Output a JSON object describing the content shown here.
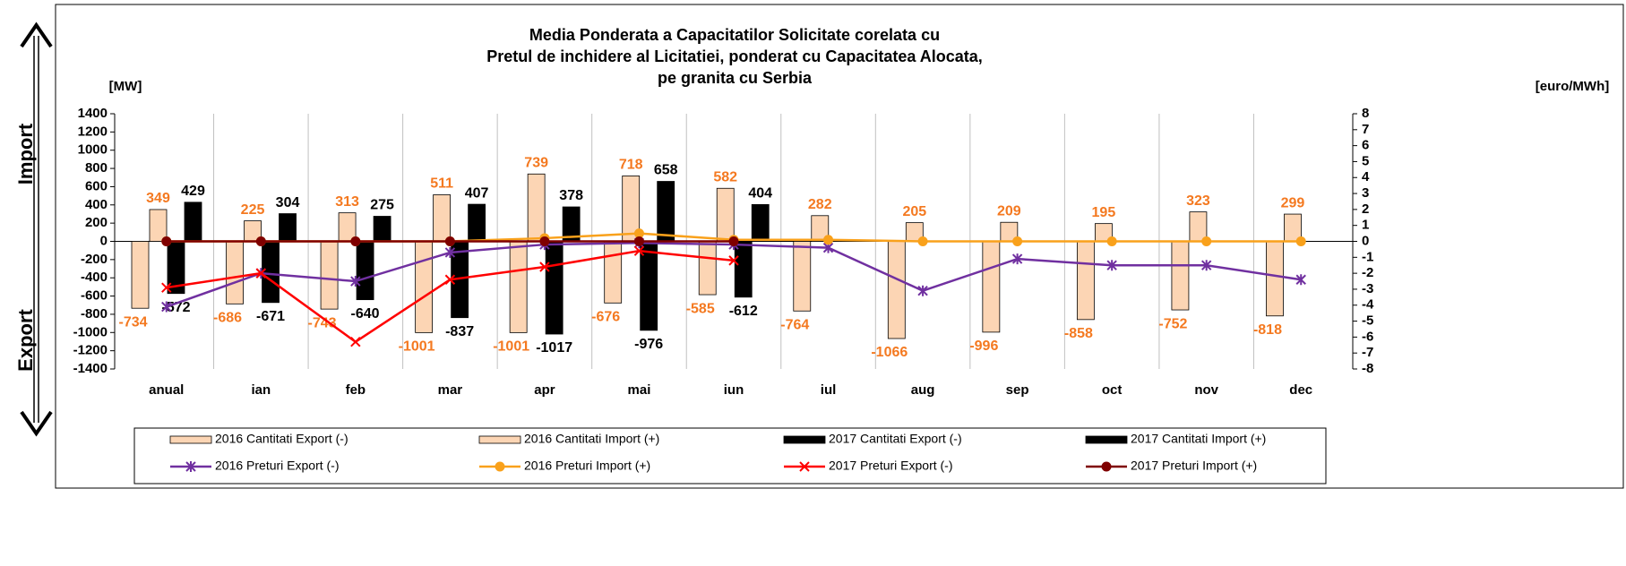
{
  "chart_data": {
    "type": "bar",
    "title": [
      "Media Ponderata a Capacitatilor Solicitate corelata cu",
      "Pretul de inchidere al Licitatiei, ponderat cu Capacitatea Alocata,",
      "pe granita cu Serbia"
    ],
    "y_label": "[MW]",
    "y2_label": "[euro/MWh]",
    "annotations": [
      "Import",
      "Export"
    ],
    "categories": [
      "anual",
      "ian",
      "feb",
      "mar",
      "apr",
      "mai",
      "iun",
      "iul",
      "aug",
      "sep",
      "oct",
      "nov",
      "dec"
    ],
    "series": [
      {
        "name": "2016 Cantitati Export (-)",
        "type": "bar",
        "color": "#fcd5b4",
        "label_color": "#f47920",
        "values": [
          -734,
          -686,
          -743,
          -1001,
          -1001,
          -676,
          -585,
          -764,
          -1066,
          -996,
          -858,
          -752,
          -818
        ]
      },
      {
        "name": "2016 Cantitati Import (+)",
        "type": "bar",
        "color": "#fcd5b4",
        "label_color": "#f47920",
        "values": [
          349,
          225,
          313,
          511,
          739,
          718,
          582,
          282,
          205,
          209,
          195,
          323,
          299
        ]
      },
      {
        "name": "2017 Cantitati Export (-)",
        "type": "bar",
        "color": "#000000",
        "label_color": "#000000",
        "values": [
          -572,
          -671,
          -640,
          -837,
          -1017,
          -976,
          -612,
          null,
          null,
          null,
          null,
          null,
          null
        ]
      },
      {
        "name": "2017 Cantitati Import (+)",
        "type": "bar",
        "color": "#000000",
        "label_color": "#000000",
        "values": [
          429,
          304,
          275,
          407,
          378,
          658,
          404,
          null,
          null,
          null,
          null,
          null,
          null
        ]
      },
      {
        "name": "2016 Preturi Export (-)",
        "type": "line",
        "axis": "y2",
        "marker": "star",
        "color": "#7030a0",
        "values": [
          -4.1,
          -2.0,
          -2.5,
          -0.7,
          -0.2,
          -0.1,
          -0.2,
          -0.4,
          -3.1,
          -1.1,
          -1.5,
          -1.5,
          -2.4
        ]
      },
      {
        "name": "2016 Preturi Import (+)",
        "type": "line",
        "axis": "y2",
        "marker": "circle",
        "color": "#f9a11b",
        "values": [
          0,
          0,
          0,
          0,
          0.2,
          0.5,
          0.1,
          0.1,
          0,
          0,
          0,
          0,
          0
        ]
      },
      {
        "name": "2017 Preturi Export (-)",
        "type": "line",
        "axis": "y2",
        "marker": "x",
        "color": "#ff0000",
        "values": [
          -2.9,
          -2.0,
          -6.3,
          -2.4,
          -1.6,
          -0.6,
          -1.2,
          null,
          null,
          null,
          null,
          null,
          null
        ]
      },
      {
        "name": "2017 Preturi Import (+)",
        "type": "line",
        "axis": "y2",
        "marker": "circle",
        "color": "#7f0000",
        "values": [
          0,
          0,
          0,
          0,
          0,
          0,
          0,
          null,
          null,
          null,
          null,
          null,
          null
        ]
      }
    ],
    "ylim": [
      -1400,
      1400
    ],
    "yticks": [
      -1400,
      -1200,
      -1000,
      -800,
      -600,
      -400,
      -200,
      0,
      200,
      400,
      600,
      800,
      1000,
      1200,
      1400
    ],
    "y2lim": [
      -8,
      8
    ],
    "y2ticks": [
      -8,
      -7,
      -6,
      -5,
      -4,
      -3,
      -2,
      -1,
      0,
      1,
      2,
      3,
      4,
      5,
      6,
      7,
      8
    ],
    "grid": "vertical"
  }
}
